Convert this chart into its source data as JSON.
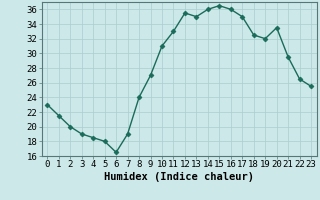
{
  "x": [
    0,
    1,
    2,
    3,
    4,
    5,
    6,
    7,
    8,
    9,
    10,
    11,
    12,
    13,
    14,
    15,
    16,
    17,
    18,
    19,
    20,
    21,
    22,
    23
  ],
  "y": [
    23,
    21.5,
    20,
    19,
    18.5,
    18,
    16.5,
    19,
    24,
    27,
    31,
    33,
    35.5,
    35,
    36,
    36.5,
    36,
    35,
    32.5,
    32,
    33.5,
    29.5,
    26.5,
    25.5
  ],
  "line_color": "#1a6b5a",
  "bg_color": "#cce8e8",
  "grid_color": "#aacece",
  "xlabel": "Humidex (Indice chaleur)",
  "xlim": [
    -0.5,
    23.5
  ],
  "ylim": [
    16,
    37
  ],
  "yticks": [
    16,
    18,
    20,
    22,
    24,
    26,
    28,
    30,
    32,
    34,
    36
  ],
  "xticks": [
    0,
    1,
    2,
    3,
    4,
    5,
    6,
    7,
    8,
    9,
    10,
    11,
    12,
    13,
    14,
    15,
    16,
    17,
    18,
    19,
    20,
    21,
    22,
    23
  ],
  "marker": "D",
  "markersize": 2.5,
  "linewidth": 1.0,
  "xlabel_fontsize": 7.5,
  "tick_fontsize": 6.5
}
